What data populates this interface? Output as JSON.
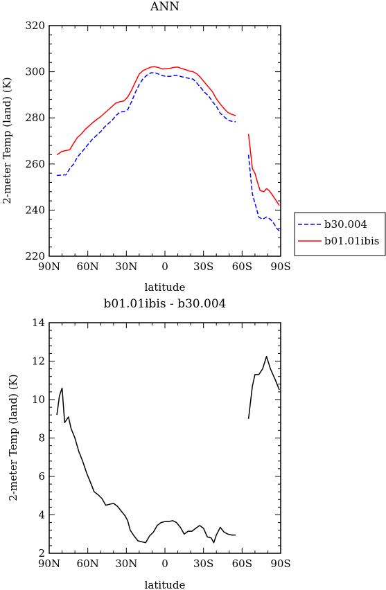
{
  "chart_data": [
    {
      "type": "line",
      "title": "ANN",
      "xlabel": "latitude",
      "ylabel": "2-meter Temp (land) (K)",
      "xlim": [
        90,
        -90
      ],
      "ylim": [
        220,
        320
      ],
      "x_tick_values": [
        90,
        60,
        30,
        0,
        -30,
        -60,
        -90
      ],
      "x_tick_labels": [
        "90N",
        "60N",
        "30N",
        "0",
        "30S",
        "60S",
        "90S"
      ],
      "y_ticks": [
        220,
        240,
        260,
        280,
        300,
        320
      ],
      "legend": "right",
      "series": [
        {
          "name": "b30.004",
          "color": "#0000ff",
          "style": "dashed",
          "segments": [
            [
              [
                84,
                255
              ],
              [
                80,
                255.2
              ],
              [
                77,
                255.3
              ],
              [
                74,
                258
              ],
              [
                71,
                260
              ],
              [
                68,
                263
              ],
              [
                65,
                265
              ],
              [
                62,
                267
              ],
              [
                59,
                269
              ],
              [
                56,
                271
              ],
              [
                53,
                272.5
              ],
              [
                50,
                274
              ],
              [
                47,
                276
              ],
              [
                44,
                277.5
              ],
              [
                41,
                279
              ],
              [
                38,
                281
              ],
              [
                35,
                282.5
              ],
              [
                32,
                282.7
              ],
              [
                29,
                283.5
              ],
              [
                26,
                287
              ],
              [
                23,
                291
              ],
              [
                20,
                294.5
              ],
              [
                17,
                297
              ],
              [
                14,
                298.5
              ],
              [
                11,
                299.5
              ],
              [
                8,
                299.6
              ],
              [
                5,
                299
              ],
              [
                2,
                298.3
              ],
              [
                -1,
                298
              ],
              [
                -4,
                298
              ],
              [
                -7,
                298.3
              ],
              [
                -10,
                298.4
              ],
              [
                -13,
                297.8
              ],
              [
                -16,
                297.5
              ],
              [
                -19,
                297.1
              ],
              [
                -22,
                296.8
              ],
              [
                -25,
                295
              ],
              [
                -28,
                293
              ],
              [
                -31,
                291
              ],
              [
                -34,
                289.5
              ],
              [
                -37,
                287
              ],
              [
                -40,
                285
              ],
              [
                -43,
                282
              ],
              [
                -46,
                280.5
              ],
              [
                -49,
                279
              ],
              [
                -52,
                278.5
              ],
              [
                -55,
                278.3
              ]
            ],
            [
              [
                -65,
                264
              ],
              [
                -66,
                258
              ],
              [
                -68,
                247
              ],
              [
                -70,
                243
              ],
              [
                -73,
                237
              ],
              [
                -76,
                236
              ],
              [
                -79,
                237
              ],
              [
                -82,
                236
              ],
              [
                -85,
                234
              ],
              [
                -87,
                232
              ],
              [
                -89,
                231
              ]
            ]
          ]
        },
        {
          "name": "b01.01ibis",
          "color": "#ff0000",
          "style": "solid",
          "segments": [
            [
              [
                84,
                264
              ],
              [
                80,
                265.5
              ],
              [
                77,
                265.8
              ],
              [
                74,
                266.2
              ],
              [
                71,
                269
              ],
              [
                68,
                271.5
              ],
              [
                65,
                273
              ],
              [
                62,
                275
              ],
              [
                59,
                276.5
              ],
              [
                56,
                278
              ],
              [
                53,
                279.3
              ],
              [
                50,
                280.5
              ],
              [
                47,
                282
              ],
              [
                44,
                283.5
              ],
              [
                41,
                285
              ],
              [
                38,
                286.5
              ],
              [
                35,
                287
              ],
              [
                32,
                287.3
              ],
              [
                29,
                289
              ],
              [
                26,
                292
              ],
              [
                23,
                295.5
              ],
              [
                20,
                299
              ],
              [
                17,
                300.5
              ],
              [
                14,
                301.3
              ],
              [
                11,
                302
              ],
              [
                8,
                302.2
              ],
              [
                5,
                301.8
              ],
              [
                2,
                301.2
              ],
              [
                -1,
                301.3
              ],
              [
                -4,
                301.5
              ],
              [
                -7,
                301.9
              ],
              [
                -10,
                302
              ],
              [
                -13,
                301.4
              ],
              [
                -16,
                300.9
              ],
              [
                -19,
                300.3
              ],
              [
                -22,
                300
              ],
              [
                -25,
                299
              ],
              [
                -28,
                297.3
              ],
              [
                -31,
                295.3
              ],
              [
                -34,
                293.3
              ],
              [
                -37,
                291.3
              ],
              [
                -40,
                288.3
              ],
              [
                -43,
                286
              ],
              [
                -46,
                284
              ],
              [
                -49,
                282.3
              ],
              [
                -52,
                281.5
              ],
              [
                -55,
                281
              ]
            ],
            [
              [
                -65,
                273
              ],
              [
                -66,
                268
              ],
              [
                -68,
                258
              ],
              [
                -70,
                256
              ],
              [
                -72,
                252
              ],
              [
                -74,
                248.5
              ],
              [
                -77,
                248
              ],
              [
                -79,
                249.3
              ],
              [
                -81,
                248.5
              ],
              [
                -83,
                247
              ],
              [
                -86,
                244.5
              ],
              [
                -89,
                242
              ]
            ]
          ]
        }
      ]
    },
    {
      "type": "line",
      "title": "b01.01ibis - b30.004",
      "xlabel": "latitude",
      "ylabel": "2-meter Temp (land) (K)",
      "xlim": [
        90,
        -90
      ],
      "ylim": [
        2,
        14
      ],
      "x_tick_values": [
        90,
        60,
        30,
        0,
        -30,
        -60,
        -90
      ],
      "x_tick_labels": [
        "90N",
        "60N",
        "30N",
        "0",
        "30S",
        "60S",
        "90S"
      ],
      "y_ticks": [
        2,
        4,
        6,
        8,
        10,
        12,
        14
      ],
      "series": [
        {
          "color": "#000000",
          "style": "solid",
          "segments": [
            [
              [
                84,
                9.2
              ],
              [
                82,
                10.2
              ],
              [
                80,
                10.6
              ],
              [
                78,
                8.8
              ],
              [
                75,
                9.1
              ],
              [
                73,
                8.5
              ],
              [
                70,
                8
              ],
              [
                67,
                7.3
              ],
              [
                64,
                6.8
              ],
              [
                61,
                6.2
              ],
              [
                58,
                5.7
              ],
              [
                55,
                5.2
              ],
              [
                52,
                5.05
              ],
              [
                49,
                4.85
              ],
              [
                46,
                4.5
              ],
              [
                43,
                4.55
              ],
              [
                40,
                4.6
              ],
              [
                37,
                4.45
              ],
              [
                34,
                4.2
              ],
              [
                31,
                3.95
              ],
              [
                29,
                3.7
              ],
              [
                27,
                3.2
              ],
              [
                24,
                2.9
              ],
              [
                21,
                2.65
              ],
              [
                18,
                2.6
              ],
              [
                15,
                2.55
              ],
              [
                12,
                2.9
              ],
              [
                9,
                3.1
              ],
              [
                6,
                3.45
              ],
              [
                3,
                3.6
              ],
              [
                0,
                3.65
              ],
              [
                -3,
                3.65
              ],
              [
                -6,
                3.7
              ],
              [
                -9,
                3.6
              ],
              [
                -12,
                3.35
              ],
              [
                -15,
                3.0
              ],
              [
                -18,
                3.15
              ],
              [
                -21,
                3.15
              ],
              [
                -24,
                3.3
              ],
              [
                -27,
                3.45
              ],
              [
                -30,
                3.3
              ],
              [
                -33,
                2.85
              ],
              [
                -36,
                2.8
              ],
              [
                -38,
                2.55
              ],
              [
                -40,
                2.95
              ],
              [
                -43,
                3.35
              ],
              [
                -46,
                3.1
              ],
              [
                -49,
                3.0
              ],
              [
                -52,
                2.95
              ],
              [
                -55,
                2.95
              ]
            ],
            [
              [
                -65,
                9.0
              ],
              [
                -68,
                10.7
              ],
              [
                -70,
                11.3
              ],
              [
                -73,
                11.3
              ],
              [
                -76,
                11.6
              ],
              [
                -79,
                12.25
              ],
              [
                -82,
                11.6
              ],
              [
                -86,
                11
              ],
              [
                -89,
                10.5
              ]
            ]
          ]
        }
      ]
    }
  ]
}
